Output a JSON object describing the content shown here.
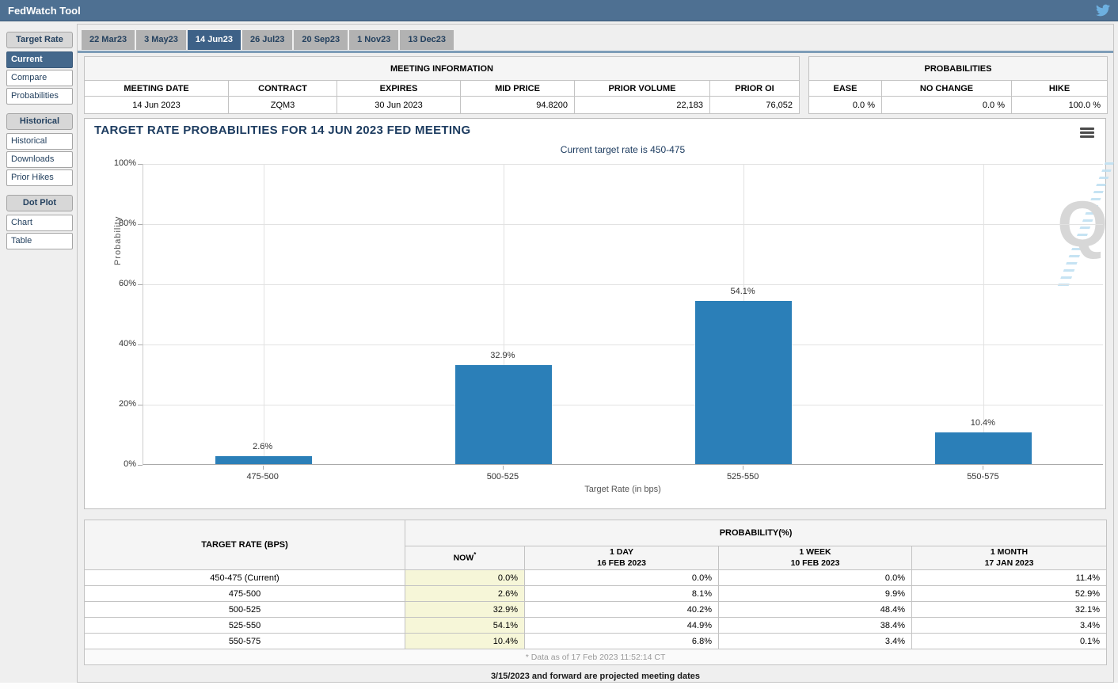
{
  "header": {
    "title": "FedWatch Tool"
  },
  "sidebar": {
    "groups": [
      {
        "header": "Target Rate",
        "items": [
          {
            "label": "Current",
            "selected": true
          },
          {
            "label": "Compare",
            "selected": false
          },
          {
            "label": "Probabilities",
            "selected": false
          }
        ]
      },
      {
        "header": "Historical",
        "items": [
          {
            "label": "Historical",
            "selected": false
          },
          {
            "label": "Downloads",
            "selected": false
          },
          {
            "label": "Prior Hikes",
            "selected": false
          }
        ]
      },
      {
        "header": "Dot Plot",
        "items": [
          {
            "label": "Chart",
            "selected": false
          },
          {
            "label": "Table",
            "selected": false
          }
        ]
      }
    ]
  },
  "tabs": [
    {
      "label": "22 Mar23",
      "selected": false
    },
    {
      "label": "3 May23",
      "selected": false
    },
    {
      "label": "14 Jun23",
      "selected": true
    },
    {
      "label": "26 Jul23",
      "selected": false
    },
    {
      "label": "20 Sep23",
      "selected": false
    },
    {
      "label": "1 Nov23",
      "selected": false
    },
    {
      "label": "13 Dec23",
      "selected": false
    }
  ],
  "meeting_info": {
    "title": "MEETING INFORMATION",
    "columns": [
      {
        "label": "MEETING DATE",
        "value": "14 Jun 2023",
        "align": "center"
      },
      {
        "label": "CONTRACT",
        "value": "ZQM3",
        "align": "center"
      },
      {
        "label": "EXPIRES",
        "value": "30 Jun 2023",
        "align": "center"
      },
      {
        "label": "MID PRICE",
        "value": "94.8200",
        "align": "right"
      },
      {
        "label": "PRIOR VOLUME",
        "value": "22,183",
        "align": "right"
      },
      {
        "label": "PRIOR OI",
        "value": "76,052",
        "align": "right"
      }
    ]
  },
  "probabilities_summary": {
    "title": "PROBABILITIES",
    "columns": [
      {
        "label": "EASE",
        "value": "0.0 %",
        "align": "right"
      },
      {
        "label": "NO CHANGE",
        "value": "0.0 %",
        "align": "right"
      },
      {
        "label": "HIKE",
        "value": "100.0 %",
        "align": "right"
      }
    ]
  },
  "chart_data": {
    "type": "bar",
    "title": "TARGET RATE PROBABILITIES FOR 14 JUN 2023 FED MEETING",
    "subtitle": "Current target rate is 450-475",
    "categories": [
      "475-500",
      "500-525",
      "525-550",
      "550-575"
    ],
    "values": [
      2.6,
      32.9,
      54.1,
      10.4
    ],
    "bar_labels": [
      "2.6%",
      "32.9%",
      "54.1%",
      "10.4%"
    ],
    "xlabel": "Target Rate (in bps)",
    "ylabel": "Probability",
    "ylim": [
      0,
      100
    ],
    "yticks": [
      0,
      20,
      40,
      60,
      80,
      100
    ],
    "ytick_labels": [
      "0%",
      "20%",
      "40%",
      "60%",
      "80%",
      "100%"
    ],
    "grid": true,
    "legend": "none",
    "bar_color": "#2b7fb8"
  },
  "rates_table": {
    "col1_header": "TARGET RATE (BPS)",
    "group_header": "PROBABILITY(%)",
    "sub_headers": [
      {
        "line1": "NOW",
        "line2": "",
        "asterisk": true
      },
      {
        "line1": "1 DAY",
        "line2": "16 FEB 2023",
        "asterisk": false
      },
      {
        "line1": "1 WEEK",
        "line2": "10 FEB 2023",
        "asterisk": false
      },
      {
        "line1": "1 MONTH",
        "line2": "17 JAN 2023",
        "asterisk": false
      }
    ],
    "rows": [
      {
        "rate": "450-475 (Current)",
        "now": "0.0%",
        "day": "0.0%",
        "week": "0.0%",
        "month": "11.4%"
      },
      {
        "rate": "475-500",
        "now": "2.6%",
        "day": "8.1%",
        "week": "9.9%",
        "month": "52.9%"
      },
      {
        "rate": "500-525",
        "now": "32.9%",
        "day": "40.2%",
        "week": "48.4%",
        "month": "32.1%"
      },
      {
        "rate": "525-550",
        "now": "54.1%",
        "day": "44.9%",
        "week": "38.4%",
        "month": "3.4%"
      },
      {
        "rate": "550-575",
        "now": "10.4%",
        "day": "6.8%",
        "week": "3.4%",
        "month": "0.1%"
      }
    ],
    "footnote": "* Data as of 17 Feb 2023 11:52:14 CT"
  },
  "projected_note": "3/15/2023 and forward are projected meeting dates",
  "colors": {
    "header_bar": "#4e7092",
    "selected_tab": "#3d6187",
    "bar_blue": "#2b7fb8",
    "now_column_yellow": "#f6f6d8",
    "twitter_blue": "#6db0e0"
  }
}
